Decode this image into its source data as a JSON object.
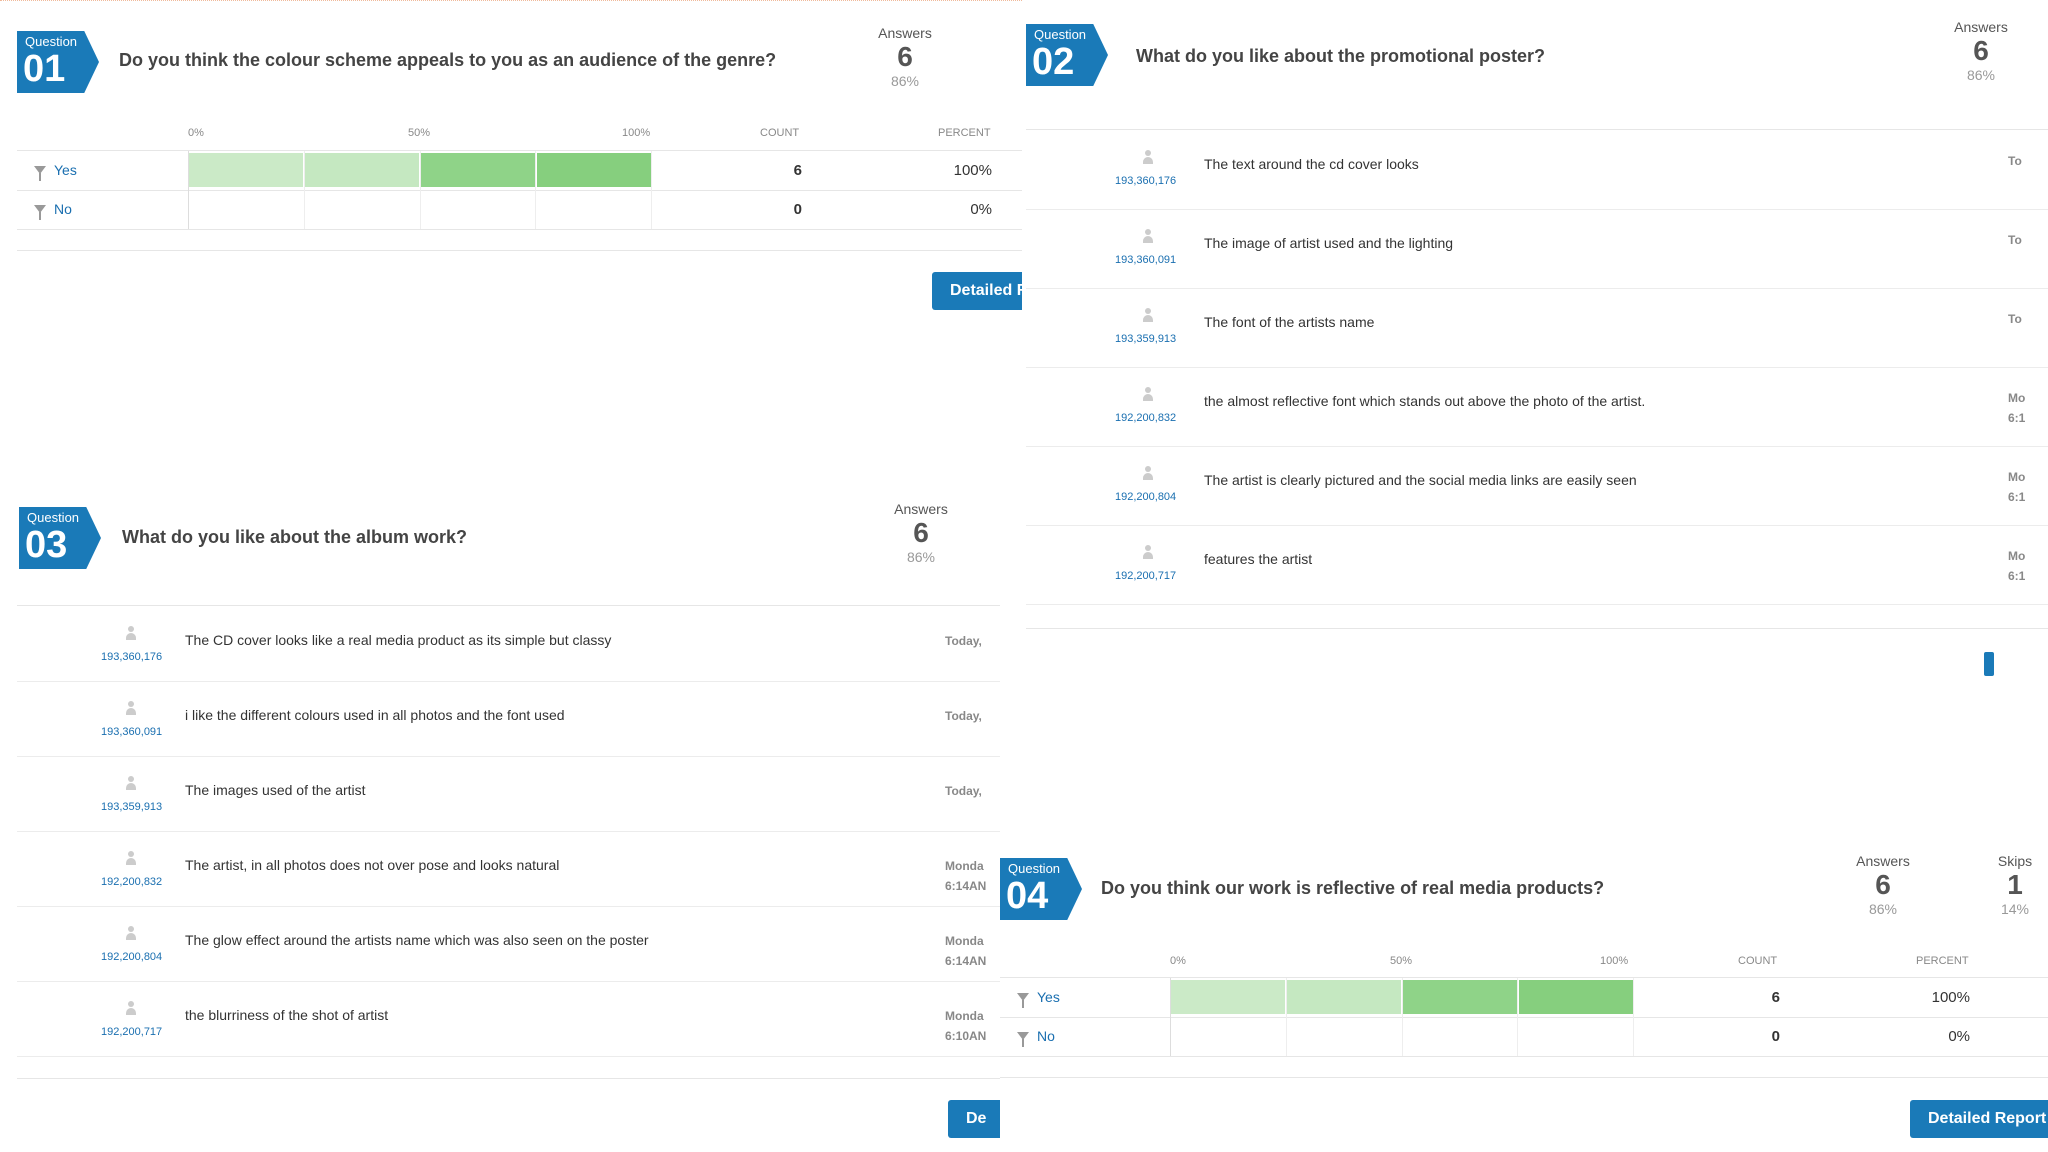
{
  "q1": {
    "badge_label": "Question",
    "badge_num": "01",
    "text": "Do you think the colour scheme appeals to you as an audience of the genre?",
    "answers_label": "Answers",
    "answers": "6",
    "answers_pct": "86%",
    "axis": [
      "0%",
      "50%",
      "100%"
    ],
    "count_header": "COUNT",
    "percent_header": "PERCENT",
    "rows": [
      {
        "label": "Yes",
        "count": "6",
        "percent": "100%",
        "fraction": 1.0
      },
      {
        "label": "No",
        "count": "0",
        "percent": "0%",
        "fraction": 0.0
      }
    ],
    "button": "Detailed R"
  },
  "q2": {
    "badge_label": "Question",
    "badge_num": "02",
    "text": "What do you like about the promotional poster?",
    "answers_label": "Answers",
    "answers": "6",
    "answers_pct": "86%",
    "responses": [
      {
        "id": "193,360,176",
        "text": "The text around the cd cover looks",
        "date": "To",
        "time": ""
      },
      {
        "id": "193,360,091",
        "text": "The image of artist used and the lighting",
        "date": "To",
        "time": ""
      },
      {
        "id": "193,359,913",
        "text": "The font of the artists name",
        "date": "To",
        "time": ""
      },
      {
        "id": "192,200,832",
        "text": "the almost reflective font which stands out above the photo of the artist.",
        "date": "Mo",
        "time": "6:1"
      },
      {
        "id": "192,200,804",
        "text": "The artist is clearly pictured and the social media links are easily seen",
        "date": "Mo",
        "time": "6:1"
      },
      {
        "id": "192,200,717",
        "text": "features the artist",
        "date": "Mo",
        "time": "6:1"
      }
    ]
  },
  "q3": {
    "badge_label": "Question",
    "badge_num": "03",
    "text": "What do you like about the album work?",
    "answers_label": "Answers",
    "answers": "6",
    "answers_pct": "86%",
    "responses": [
      {
        "id": "193,360,176",
        "text": "The CD cover looks like a real media product as its simple but classy",
        "date": "Today,",
        "time": ""
      },
      {
        "id": "193,360,091",
        "text": "i like the different colours used in all photos and the font used",
        "date": "Today,",
        "time": ""
      },
      {
        "id": "193,359,913",
        "text": "The images used of the artist",
        "date": "Today,",
        "time": ""
      },
      {
        "id": "192,200,832",
        "text": "The artist, in all photos does not over pose and looks natural",
        "date": "Monda",
        "time": "6:14AN"
      },
      {
        "id": "192,200,804",
        "text": "The glow effect around the artists name which was also seen on the poster",
        "date": "Monda",
        "time": "6:14AN"
      },
      {
        "id": "192,200,717",
        "text": "the blurriness of the shot of artist",
        "date": "Monda",
        "time": "6:10AN"
      }
    ],
    "button": "De"
  },
  "q4": {
    "badge_label": "Question",
    "badge_num": "04",
    "text": "Do you think our work is reflective of real media products?",
    "answers_label": "Answers",
    "answers": "6",
    "answers_pct": "86%",
    "skips_label": "Skips",
    "skips": "1",
    "skips_pct": "14%",
    "axis": [
      "0%",
      "50%",
      "100%"
    ],
    "count_header": "COUNT",
    "percent_header": "PERCENT",
    "rows": [
      {
        "label": "Yes",
        "count": "6",
        "percent": "100%",
        "fraction": 1.0
      },
      {
        "label": "No",
        "count": "0",
        "percent": "0%",
        "fraction": 0.0
      }
    ],
    "button": "Detailed Report"
  },
  "colors": {
    "accent": "#1a7ab8",
    "bar_light": "#b9e3b4",
    "bar_dark": "#86cf7e"
  }
}
